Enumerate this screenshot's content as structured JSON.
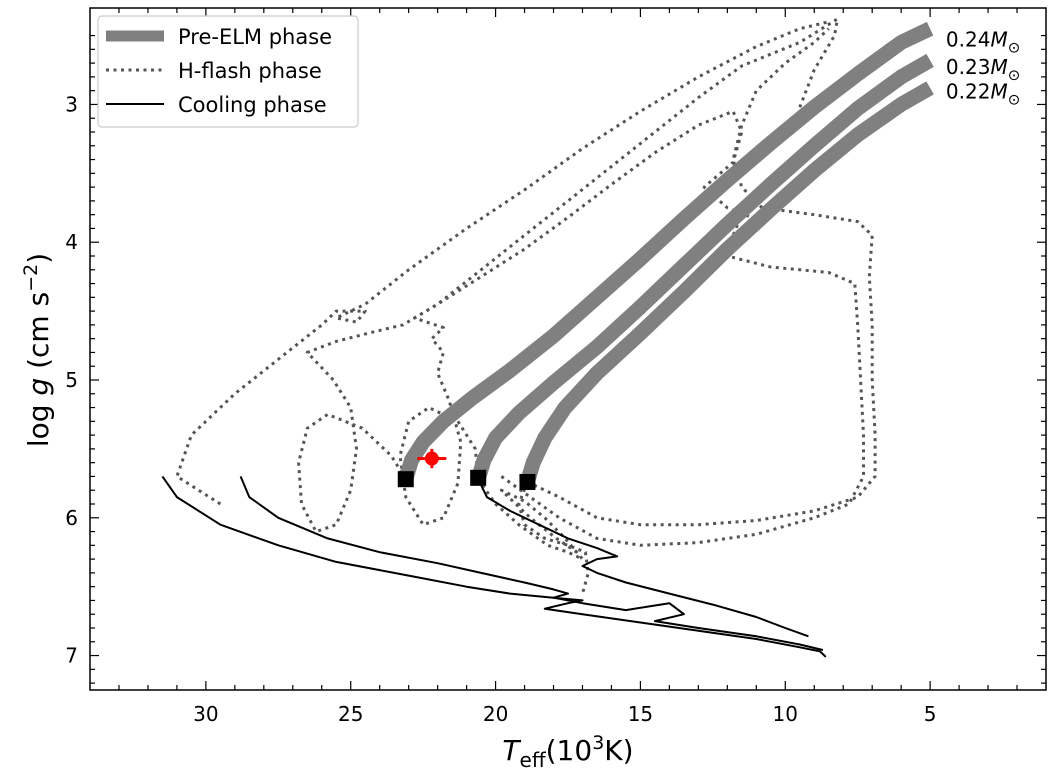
{
  "chart_data": {
    "type": "line",
    "xlabel": {
      "main": "T",
      "sub": "eff",
      "unit_pre": "(10",
      "unit_sup": "3",
      "unit_post": "K)"
    },
    "ylabel": {
      "pre": "log ",
      "var": "g",
      "unit": " (cm s",
      "sup": "−2",
      "post": ")"
    },
    "xlim": [
      34,
      1
    ],
    "ylim": [
      2.3,
      7.25
    ],
    "x_inverted": true,
    "y_inverted": true,
    "xticks": [
      30,
      25,
      20,
      15,
      10,
      5
    ],
    "yticks": [
      3,
      4,
      5,
      6,
      7
    ],
    "legend": {
      "position": "top-left",
      "entries": [
        {
          "label": "Pre-ELM phase",
          "style": "thick",
          "color": "#808080"
        },
        {
          "label": "H-flash phase",
          "style": "dotted",
          "color": "#555555"
        },
        {
          "label": "Cooling phase",
          "style": "solid",
          "color": "#000000"
        }
      ]
    },
    "mass_labels": [
      {
        "text": "0.24",
        "x": 4.8,
        "y": 2.52
      },
      {
        "text": "0.23",
        "x": 4.8,
        "y": 2.72
      },
      {
        "text": "0.22",
        "x": 4.8,
        "y": 2.9
      }
    ],
    "mass_unit": "M",
    "mass_sub": "⊙",
    "series": [
      {
        "phase": "pre-elm",
        "mass": 0.24,
        "points": [
          [
            5.0,
            2.45
          ],
          [
            6.0,
            2.55
          ],
          [
            7.5,
            2.78
          ],
          [
            9.0,
            3.02
          ],
          [
            10.5,
            3.28
          ],
          [
            12.0,
            3.55
          ],
          [
            13.5,
            3.83
          ],
          [
            15.0,
            4.12
          ],
          [
            16.5,
            4.4
          ],
          [
            18.0,
            4.68
          ],
          [
            19.5,
            4.93
          ],
          [
            20.8,
            5.13
          ],
          [
            21.8,
            5.3
          ],
          [
            22.5,
            5.45
          ],
          [
            22.9,
            5.58
          ],
          [
            23.1,
            5.72
          ]
        ]
      },
      {
        "phase": "pre-elm",
        "mass": 0.23,
        "points": [
          [
            5.0,
            2.68
          ],
          [
            6.0,
            2.8
          ],
          [
            7.5,
            3.03
          ],
          [
            9.0,
            3.3
          ],
          [
            10.5,
            3.58
          ],
          [
            12.0,
            3.87
          ],
          [
            13.5,
            4.17
          ],
          [
            15.0,
            4.47
          ],
          [
            16.5,
            4.76
          ],
          [
            18.0,
            5.02
          ],
          [
            19.2,
            5.24
          ],
          [
            20.0,
            5.42
          ],
          [
            20.4,
            5.58
          ],
          [
            20.6,
            5.72
          ]
        ]
      },
      {
        "phase": "pre-elm",
        "mass": 0.22,
        "points": [
          [
            5.0,
            2.88
          ],
          [
            6.0,
            3.0
          ],
          [
            7.5,
            3.22
          ],
          [
            9.0,
            3.48
          ],
          [
            10.5,
            3.76
          ],
          [
            12.0,
            4.05
          ],
          [
            13.5,
            4.36
          ],
          [
            15.0,
            4.66
          ],
          [
            16.5,
            4.95
          ],
          [
            17.6,
            5.2
          ],
          [
            18.3,
            5.42
          ],
          [
            18.7,
            5.6
          ],
          [
            18.9,
            5.74
          ]
        ]
      },
      {
        "phase": "h-flash",
        "mass": 0.24,
        "points": [
          [
            23.1,
            5.72
          ],
          [
            23.6,
            5.55
          ],
          [
            24.6,
            5.35
          ],
          [
            25.8,
            5.25
          ],
          [
            26.5,
            5.35
          ],
          [
            26.8,
            5.6
          ],
          [
            26.7,
            5.9
          ],
          [
            26.2,
            6.1
          ],
          [
            25.5,
            6.05
          ],
          [
            25.0,
            5.8
          ],
          [
            24.8,
            5.5
          ],
          [
            25.0,
            5.2
          ],
          [
            25.6,
            5.0
          ],
          [
            26.5,
            4.8
          ],
          [
            25.5,
            4.72
          ],
          [
            24.2,
            4.65
          ],
          [
            23.2,
            4.6
          ],
          [
            22.0,
            4.45
          ],
          [
            20.5,
            4.2
          ],
          [
            19.0,
            3.95
          ],
          [
            17.5,
            3.7
          ],
          [
            16.0,
            3.45
          ],
          [
            14.5,
            3.2
          ],
          [
            13.0,
            2.95
          ],
          [
            11.5,
            2.72
          ],
          [
            9.5,
            2.55
          ],
          [
            8.2,
            2.38
          ],
          [
            8.3,
            2.5
          ],
          [
            9.0,
            2.75
          ],
          [
            9.5,
            3.02
          ]
        ]
      },
      {
        "phase": "h-flash",
        "mass": 0.24,
        "points": [
          [
            29.5,
            5.9
          ],
          [
            31.0,
            5.7
          ],
          [
            30.5,
            5.4
          ],
          [
            29.0,
            5.1
          ],
          [
            27.5,
            4.85
          ],
          [
            26.0,
            4.6
          ],
          [
            25.5,
            4.5
          ],
          [
            25.0,
            4.5
          ],
          [
            24.5,
            4.5
          ],
          [
            24.8,
            4.58
          ],
          [
            25.5,
            4.55
          ],
          [
            24.5,
            4.45
          ],
          [
            23.0,
            4.2
          ],
          [
            21.0,
            3.9
          ],
          [
            19.0,
            3.62
          ],
          [
            17.0,
            3.32
          ],
          [
            15.0,
            3.05
          ],
          [
            13.0,
            2.8
          ],
          [
            11.0,
            2.58
          ],
          [
            9.5,
            2.45
          ],
          [
            8.5,
            2.4
          ]
        ]
      },
      {
        "phase": "h-flash",
        "mass": 0.23,
        "points": [
          [
            20.6,
            5.72
          ],
          [
            20.7,
            5.5
          ],
          [
            21.3,
            5.3
          ],
          [
            22.3,
            5.2
          ],
          [
            23.0,
            5.3
          ],
          [
            23.3,
            5.55
          ],
          [
            23.1,
            5.85
          ],
          [
            22.5,
            6.05
          ],
          [
            21.8,
            6.0
          ],
          [
            21.3,
            5.75
          ],
          [
            21.2,
            5.45
          ],
          [
            21.6,
            5.15
          ],
          [
            22.0,
            4.95
          ],
          [
            21.8,
            4.8
          ],
          [
            22.2,
            4.7
          ],
          [
            21.8,
            4.62
          ],
          [
            22.8,
            4.55
          ],
          [
            22.0,
            4.45
          ],
          [
            20.5,
            4.25
          ],
          [
            19.0,
            4.05
          ],
          [
            17.5,
            3.82
          ],
          [
            16.0,
            3.58
          ],
          [
            14.5,
            3.35
          ],
          [
            13.0,
            3.15
          ],
          [
            11.8,
            3.05
          ],
          [
            11.5,
            3.2
          ],
          [
            11.8,
            3.42
          ],
          [
            12.8,
            3.6
          ],
          [
            12.0,
            3.75
          ],
          [
            10.8,
            3.85
          ]
        ]
      },
      {
        "phase": "h-flash",
        "mass": 0.23,
        "points": [
          [
            18.9,
            5.74
          ],
          [
            19.2,
            5.9
          ],
          [
            19.0,
            6.05
          ],
          [
            18.3,
            6.15
          ],
          [
            17.5,
            6.2
          ],
          [
            16.9,
            6.25
          ],
          [
            16.8,
            6.4
          ],
          [
            17.0,
            6.55
          ]
        ]
      },
      {
        "phase": "h-flash",
        "mass": 0.22,
        "points": [
          [
            18.9,
            5.74
          ],
          [
            17.8,
            5.85
          ],
          [
            16.5,
            6.0
          ],
          [
            15.0,
            6.05
          ],
          [
            13.0,
            6.05
          ],
          [
            11.0,
            6.02
          ],
          [
            9.0,
            5.95
          ],
          [
            7.5,
            5.85
          ],
          [
            6.9,
            5.7
          ],
          [
            6.9,
            5.4
          ],
          [
            7.0,
            5.0
          ],
          [
            7.0,
            4.6
          ],
          [
            7.1,
            4.25
          ],
          [
            7.0,
            3.95
          ],
          [
            7.5,
            3.85
          ],
          [
            9.0,
            3.8
          ],
          [
            10.8,
            3.75
          ],
          [
            11.5,
            3.6
          ],
          [
            11.8,
            3.4
          ],
          [
            11.5,
            3.15
          ],
          [
            11.0,
            2.9
          ],
          [
            10.0,
            2.7
          ],
          [
            9.0,
            2.55
          ],
          [
            8.5,
            2.45
          ]
        ]
      },
      {
        "phase": "h-flash",
        "mass": 0.22,
        "points": [
          [
            19.8,
            5.7
          ],
          [
            18.8,
            5.85
          ],
          [
            17.8,
            6.0
          ],
          [
            16.5,
            6.15
          ],
          [
            15.0,
            6.2
          ],
          [
            13.0,
            6.18
          ],
          [
            11.0,
            6.12
          ],
          [
            9.0,
            6.0
          ],
          [
            7.8,
            5.9
          ],
          [
            7.3,
            5.7
          ],
          [
            7.3,
            5.4
          ],
          [
            7.4,
            5.0
          ],
          [
            7.5,
            4.6
          ],
          [
            7.6,
            4.3
          ],
          [
            8.5,
            4.22
          ],
          [
            10.5,
            4.18
          ],
          [
            12.0,
            4.1
          ],
          [
            11.8,
            3.95
          ],
          [
            11.5,
            3.8
          ]
        ]
      },
      {
        "phase": "h-flash",
        "mass": 0.22,
        "points": [
          [
            20.6,
            5.72
          ],
          [
            20.0,
            5.9
          ],
          [
            19.2,
            6.05
          ],
          [
            18.2,
            6.2
          ],
          [
            17.5,
            6.25
          ],
          [
            17.0,
            6.3
          ],
          [
            17.6,
            6.15
          ],
          [
            18.3,
            6.0
          ],
          [
            19.0,
            5.88
          ],
          [
            19.8,
            5.8
          ],
          [
            18.8,
            6.0
          ],
          [
            17.9,
            6.15
          ],
          [
            17.2,
            6.25
          ]
        ]
      },
      {
        "phase": "cooling",
        "mass": 0.24,
        "points": [
          [
            31.5,
            5.7
          ],
          [
            31.0,
            5.85
          ],
          [
            29.5,
            6.05
          ],
          [
            27.5,
            6.2
          ],
          [
            25.5,
            6.32
          ],
          [
            23.0,
            6.42
          ],
          [
            21.0,
            6.5
          ],
          [
            19.5,
            6.55
          ],
          [
            18.0,
            6.58
          ],
          [
            17.0,
            6.6
          ],
          [
            17.5,
            6.62
          ],
          [
            18.3,
            6.66
          ],
          [
            17.0,
            6.7
          ],
          [
            15.0,
            6.76
          ],
          [
            13.0,
            6.82
          ],
          [
            11.0,
            6.88
          ],
          [
            9.5,
            6.94
          ],
          [
            8.8,
            6.97
          ],
          [
            8.6,
            7.01
          ]
        ]
      },
      {
        "phase": "cooling",
        "mass": 0.23,
        "points": [
          [
            28.8,
            5.7
          ],
          [
            28.5,
            5.85
          ],
          [
            27.5,
            6.0
          ],
          [
            25.8,
            6.15
          ],
          [
            24.0,
            6.25
          ],
          [
            22.0,
            6.33
          ],
          [
            20.5,
            6.4
          ],
          [
            19.0,
            6.47
          ],
          [
            18.0,
            6.52
          ],
          [
            17.5,
            6.55
          ],
          [
            18.0,
            6.58
          ],
          [
            17.0,
            6.62
          ],
          [
            15.5,
            6.67
          ],
          [
            14.0,
            6.62
          ],
          [
            13.5,
            6.7
          ],
          [
            14.5,
            6.75
          ],
          [
            13.0,
            6.8
          ],
          [
            11.0,
            6.86
          ],
          [
            9.5,
            6.92
          ],
          [
            8.7,
            6.96
          ]
        ]
      },
      {
        "phase": "cooling",
        "mass": 0.22,
        "points": [
          [
            20.6,
            5.72
          ],
          [
            20.3,
            5.85
          ],
          [
            19.5,
            5.95
          ],
          [
            18.5,
            6.05
          ],
          [
            17.5,
            6.15
          ],
          [
            16.5,
            6.22
          ],
          [
            15.8,
            6.28
          ],
          [
            16.5,
            6.3
          ],
          [
            17.0,
            6.35
          ],
          [
            16.5,
            6.4
          ],
          [
            15.5,
            6.47
          ],
          [
            14.0,
            6.55
          ],
          [
            12.5,
            6.63
          ],
          [
            11.0,
            6.72
          ],
          [
            10.0,
            6.8
          ],
          [
            9.2,
            6.86
          ]
        ]
      }
    ],
    "endpoints": [
      {
        "x": 23.1,
        "y": 5.72
      },
      {
        "x": 20.6,
        "y": 5.71
      },
      {
        "x": 18.9,
        "y": 5.74
      }
    ],
    "observation": {
      "x": 22.2,
      "y": 5.57,
      "xerr": 0.5,
      "yerr": 0.07,
      "color": "#ff0000"
    }
  }
}
